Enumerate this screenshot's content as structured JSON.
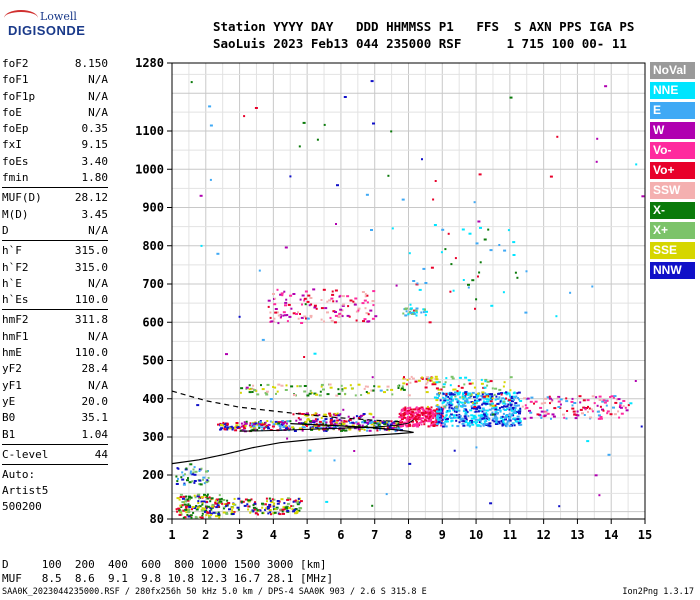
{
  "logo": {
    "line1": "Lowell",
    "line2": "DIGISONDE"
  },
  "header": {
    "line1": "Station YYYY DAY   DDD HHMMSS P1   FFS  S AXN PPS IGA PS",
    "line2": "SaoLuis 2023 Feb13 044 235000 RSF      1 715 100 00- 11"
  },
  "params": {
    "group1": [
      {
        "name": "foF2",
        "value": "8.150"
      },
      {
        "name": "foF1",
        "value": "N/A"
      },
      {
        "name": "foF1p",
        "value": "N/A"
      },
      {
        "name": "foE",
        "value": "N/A"
      },
      {
        "name": "foEp",
        "value": "0.35"
      },
      {
        "name": "fxI",
        "value": "9.15"
      },
      {
        "name": "foEs",
        "value": "3.40"
      },
      {
        "name": "fmin",
        "value": "1.80"
      }
    ],
    "group2": [
      {
        "name": "MUF(D)",
        "value": "28.12"
      },
      {
        "name": "M(D)",
        "value": "3.45"
      },
      {
        "name": "D",
        "value": "N/A"
      }
    ],
    "group3": [
      {
        "name": "h`F",
        "value": "315.0"
      },
      {
        "name": "h`F2",
        "value": "315.0"
      },
      {
        "name": "h`E",
        "value": "N/A"
      },
      {
        "name": "h`Es",
        "value": "110.0"
      }
    ],
    "group4": [
      {
        "name": "hmF2",
        "value": "311.8"
      },
      {
        "name": "hmF1",
        "value": "N/A"
      },
      {
        "name": "hmE",
        "value": "110.0"
      },
      {
        "name": "yF2",
        "value": "28.4"
      },
      {
        "name": "yF1",
        "value": "N/A"
      },
      {
        "name": "yE",
        "value": "20.0"
      },
      {
        "name": "B0",
        "value": "35.1"
      },
      {
        "name": "B1",
        "value": "1.04"
      }
    ],
    "group5": [
      {
        "name": "C-level",
        "value": "44"
      }
    ],
    "auto": [
      "Auto:",
      "Artist5",
      "500200"
    ]
  },
  "legend": [
    {
      "label": "NoVal",
      "color": "#9a9a9a"
    },
    {
      "label": "NNE",
      "color": "#00e5ff"
    },
    {
      "label": "E",
      "color": "#3fa9f5"
    },
    {
      "label": "W",
      "color": "#b000b0"
    },
    {
      "label": "Vo-",
      "color": "#ff2a9e"
    },
    {
      "label": "Vo+",
      "color": "#e8002a"
    },
    {
      "label": "SSW",
      "color": "#f4b0b0"
    },
    {
      "label": "X-",
      "color": "#0a7a0a"
    },
    {
      "label": "X+",
      "color": "#7cc36a"
    },
    {
      "label": "SSE",
      "color": "#d6d600"
    },
    {
      "label": "NNW",
      "color": "#1010c8"
    }
  ],
  "footer": {
    "line1": "D     100  200  400  600  800 1000 1500 3000 [km]",
    "line2": "MUF   8.5  8.6  9.1  9.8 10.8 12.3 16.7 28.1 [MHz]",
    "bottom": "SAA0K_2023044235000.RSF / 280fx256h 50 kHz 5.0 km / DPS-4 SAA0K 903 / 2.6 S 315.8 E",
    "version": "Ion2Png 1.3.17"
  },
  "chart_data": {
    "type": "scatter",
    "xlim": [
      1,
      15
    ],
    "ylim": [
      80,
      1280
    ],
    "x_ticks": [
      1,
      2,
      3,
      4,
      5,
      6,
      7,
      8,
      9,
      10,
      11,
      12,
      13,
      14,
      15
    ],
    "y_ticks": [
      80,
      200,
      300,
      400,
      500,
      600,
      700,
      800,
      900,
      1000,
      1100,
      1280
    ],
    "grid": true,
    "scale": "custom-height",
    "clusters": [
      {
        "x": [
          1.1,
          2.4
        ],
        "y": [
          85,
          150
        ],
        "n": 160,
        "colors": [
          "#1010c8",
          "#e8002a",
          "#d6d600",
          "#0a7a0a",
          "#7cc36a"
        ]
      },
      {
        "x": [
          1.1,
          2.1
        ],
        "y": [
          175,
          225
        ],
        "n": 45,
        "colors": [
          "#1010c8",
          "#0a7a0a",
          "#7cc36a",
          "#3fa9f5"
        ]
      },
      {
        "x": [
          2.3,
          4.8
        ],
        "y": [
          95,
          140
        ],
        "n": 160,
        "colors": [
          "#0a7a0a",
          "#7cc36a",
          "#d6d600",
          "#e8002a",
          "#1010c8"
        ]
      },
      {
        "x": [
          2.3,
          3.0
        ],
        "y": [
          320,
          340
        ],
        "n": 40,
        "colors": [
          "#1010c8",
          "#d6d600",
          "#e8002a"
        ]
      },
      {
        "x": [
          3.0,
          7.8
        ],
        "y": [
          318,
          345
        ],
        "n": 320,
        "colors": [
          "#1010c8",
          "#e8002a",
          "#d6d600",
          "#3fa9f5",
          "#0a7a0a",
          "#b000b0"
        ]
      },
      {
        "x": [
          4.5,
          7.0
        ],
        "y": [
          345,
          365
        ],
        "n": 60,
        "colors": [
          "#e8002a",
          "#1010c8",
          "#d6d600",
          "#b000b0"
        ]
      },
      {
        "x": [
          3.0,
          8.0
        ],
        "y": [
          410,
          440
        ],
        "n": 90,
        "colors": [
          "#d6d600",
          "#7cc36a",
          "#0a7a0a",
          "#f4b0b0"
        ]
      },
      {
        "x": [
          3.8,
          7.0
        ],
        "y": [
          600,
          690
        ],
        "n": 130,
        "colors": [
          "#b000b0",
          "#ff2a9e",
          "#f4b0b0",
          "#e8002a"
        ]
      },
      {
        "x": [
          7.7,
          9.0
        ],
        "y": [
          330,
          380
        ],
        "n": 260,
        "colors": [
          "#e8002a",
          "#ff2a9e"
        ]
      },
      {
        "x": [
          8.8,
          11.3
        ],
        "y": [
          330,
          420
        ],
        "n": 520,
        "colors": [
          "#3fa9f5",
          "#00e5ff",
          "#1010c8"
        ]
      },
      {
        "x": [
          8.5,
          11.0
        ],
        "y": [
          380,
          460
        ],
        "n": 90,
        "colors": [
          "#d6d600",
          "#e8002a",
          "#00e5ff",
          "#7cc36a"
        ]
      },
      {
        "x": [
          11.3,
          14.5
        ],
        "y": [
          350,
          410
        ],
        "n": 130,
        "colors": [
          "#e8002a",
          "#ff2a9e",
          "#f4b0b0",
          "#3fa9f5",
          "#b000b0"
        ]
      },
      {
        "x": [
          8.0,
          11.5
        ],
        "y": [
          600,
          850
        ],
        "n": 45,
        "colors": [
          "#3fa9f5",
          "#00e5ff",
          "#0a7a0a",
          "#e8002a"
        ]
      },
      {
        "x": [
          7.8,
          8.8
        ],
        "y": [
          440,
          460
        ],
        "n": 30,
        "colors": [
          "#e8002a",
          "#d6d600",
          "#f4b0b0"
        ]
      },
      {
        "x": [
          7.8,
          8.5
        ],
        "y": [
          620,
          640
        ],
        "n": 30,
        "colors": [
          "#3fa9f5",
          "#00e5ff",
          "#7cc36a"
        ]
      },
      {
        "x": [
          1.5,
          15.0
        ],
        "y": [
          100,
          1250
        ],
        "n": 90,
        "colors": [
          "#3fa9f5",
          "#e8002a",
          "#b000b0",
          "#0a7a0a",
          "#1010c8",
          "#00e5ff"
        ]
      }
    ],
    "trace_xo": {
      "x": [
        3.0,
        4.0,
        5.0,
        6.0,
        7.0,
        7.6,
        8.0,
        8.15
      ],
      "y": [
        315,
        317,
        320,
        323,
        326,
        330,
        336,
        345
      ]
    },
    "profile": {
      "x": [
        1.0,
        1.8,
        2.6,
        3.4,
        4.2,
        5.0,
        5.8,
        6.6,
        7.2,
        7.7,
        8.0,
        8.15,
        8.0,
        7.5,
        6.8,
        5.8,
        5.0,
        4.5
      ],
      "y": [
        230,
        240,
        255,
        272,
        285,
        292,
        298,
        303,
        306,
        309,
        311,
        312,
        315,
        320,
        325,
        330,
        333,
        335
      ]
    },
    "profile_dashed": {
      "x": [
        1.0,
        2.0,
        3.0,
        4.0,
        5.0,
        6.0,
        7.0,
        7.8
      ],
      "y": [
        420,
        395,
        378,
        368,
        358,
        350,
        344,
        340
      ]
    }
  }
}
